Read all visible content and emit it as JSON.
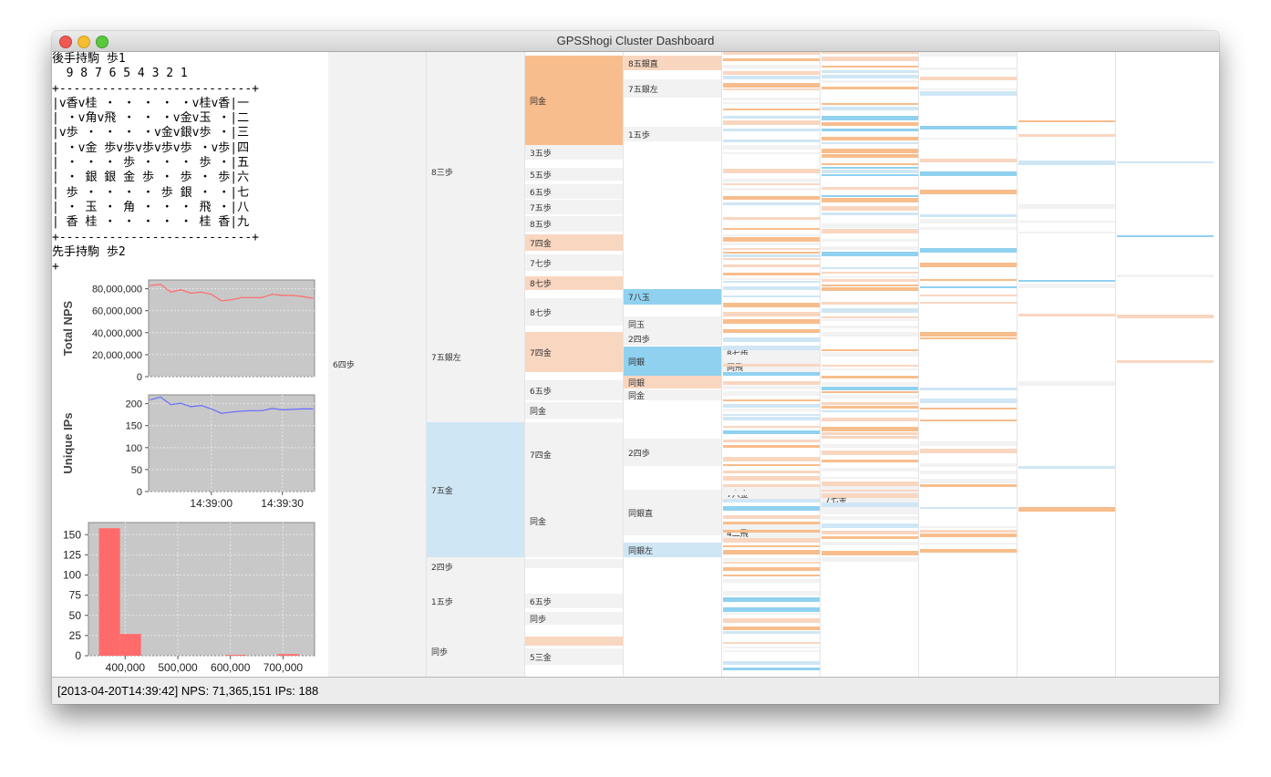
{
  "window": {
    "title": "GPSShogi Cluster Dashboard"
  },
  "board": {
    "lines": [
      "後手持駒 歩1",
      "  9 8 7 6 5 4 3 2 1",
      "+---------------------------+",
      "|v香v桂 ・ ・ ・ ・ ・v桂v香|一",
      "| ・v角v飛 ・ ・ ・v金v玉 ・|二",
      "|v歩 ・ ・ ・ ・v金v銀v歩 ・|三",
      "| ・v金 歩v歩v歩v歩v歩 ・v歩|四",
      "| ・ ・ ・ 歩 ・ ・ ・ 歩 ・|五",
      "| ・ 銀 銀 金 歩 ・ 歩 ・ 歩|六",
      "| 歩 ・ ・ ・ ・ 歩 銀 ・ ・|七",
      "| ・ 玉 ・ 角 ・ ・ ・ 飛 ・|八",
      "| 香 桂 ・ ・ ・ ・ ・ 桂 香|九",
      "+---------------------------+",
      "先手持駒 歩2",
      "+"
    ]
  },
  "nps_chart": {
    "ylabel": "Total NPS",
    "yticks": [
      "80,000,000",
      "60,000,000",
      "40,000,000",
      "20,000,000",
      "0"
    ],
    "tickvals": [
      80000000,
      60000000,
      40000000,
      20000000,
      0
    ],
    "color": "#ff6b6b",
    "bg": "#c8c8c8",
    "ylim": [
      0,
      88000000
    ]
  },
  "ips_chart": {
    "ylabel": "Unique IPs",
    "yticks": [
      "200",
      "150",
      "100",
      "50",
      "0"
    ],
    "tickvals": [
      200,
      150,
      100,
      50,
      0
    ],
    "xticks": [
      "14:39:00",
      "14:39:30"
    ],
    "color": "#6b6bff",
    "bg": "#c8c8c8",
    "ylim": [
      0,
      220
    ]
  },
  "histogram": {
    "yticks": [
      "150",
      "125",
      "100",
      "75",
      "50",
      "25",
      "0"
    ],
    "tickvals": [
      150,
      125,
      100,
      75,
      50,
      25,
      0
    ],
    "xticks": [
      "400,000",
      "500,000",
      "600,000",
      "700,000"
    ],
    "xtickvals": [
      400000,
      500000,
      600000,
      700000
    ],
    "color": "#ff6b6b",
    "bg": "#c8c8c8",
    "ylim": [
      0,
      165
    ],
    "xlim": [
      330000,
      760000
    ]
  },
  "chart_data": [
    {
      "type": "line",
      "x": [
        "14:38:38",
        "14:38:42",
        "14:38:46",
        "14:38:50",
        "14:38:54",
        "14:38:58",
        "14:39:02",
        "14:39:06",
        "14:39:10",
        "14:39:14",
        "14:39:18",
        "14:39:22",
        "14:39:26",
        "14:39:30",
        "14:39:34",
        "14:39:38",
        "14:39:42"
      ],
      "series": [
        {
          "values": [
            83000000,
            84000000,
            77000000,
            79000000,
            76000000,
            77000000,
            75000000,
            69000000,
            70000000,
            72000000,
            72000000,
            72000000,
            75000000,
            74000000,
            74000000,
            73000000,
            71365151
          ]
        }
      ],
      "ylabel": "Total NPS",
      "ylim": [
        0,
        88000000
      ]
    },
    {
      "type": "line",
      "x": [
        "14:38:38",
        "14:38:42",
        "14:38:46",
        "14:38:50",
        "14:38:54",
        "14:38:58",
        "14:39:02",
        "14:39:06",
        "14:39:10",
        "14:39:14",
        "14:39:18",
        "14:39:22",
        "14:39:26",
        "14:39:30",
        "14:39:34",
        "14:39:38",
        "14:39:42"
      ],
      "series": [
        {
          "values": [
            209,
            215,
            198,
            201,
            193,
            196,
            188,
            178,
            181,
            183,
            184,
            184,
            189,
            186,
            187,
            188,
            188
          ]
        }
      ],
      "xticks": [
        "14:39:00",
        "14:39:30"
      ],
      "ylabel": "Unique IPs",
      "ylim": [
        0,
        220
      ]
    },
    {
      "type": "bar",
      "bins": [
        [
          350000,
          390000
        ],
        [
          390000,
          430000
        ],
        [
          590000,
          630000
        ],
        [
          690000,
          730000
        ]
      ],
      "values": [
        158,
        27,
        1,
        2
      ],
      "ylim": [
        0,
        165
      ]
    }
  ],
  "tree": {
    "colors": {
      "orange": "#f8bd8c",
      "light_orange": "#f9d6c0",
      "blue": "#90d1f0",
      "light_blue": "#cfe6f4",
      "grey": "#f2f2f2"
    },
    "cells": [
      {
        "text": "6四歩",
        "c": "grey"
      },
      {
        "text": "8三歩",
        "c": "grey"
      },
      {
        "text": "7五銀左",
        "c": "grey"
      },
      {
        "text": "7五金",
        "c": "light_blue"
      },
      {
        "text": "2四歩",
        "c": "grey"
      },
      {
        "text": "1五歩",
        "c": "grey"
      },
      {
        "text": "同歩",
        "c": "grey"
      },
      {
        "text": "同金",
        "c": "orange"
      },
      {
        "text": "3五歩",
        "c": "grey"
      },
      {
        "text": "5五歩",
        "c": "grey"
      },
      {
        "text": "6五歩",
        "c": "grey"
      },
      {
        "text": "7五歩",
        "c": "grey"
      },
      {
        "text": "8五歩",
        "c": "grey"
      },
      {
        "text": "7四金",
        "c": "light_orange"
      },
      {
        "text": "7七歩",
        "c": "grey"
      },
      {
        "text": "8七歩",
        "c": "light_orange"
      },
      {
        "text": "8七歩",
        "c": "grey"
      },
      {
        "text": "7四金",
        "c": "light_orange"
      },
      {
        "text": "6五歩",
        "c": "grey"
      },
      {
        "text": "同金",
        "c": "grey"
      },
      {
        "text": "7四金",
        "c": "grey"
      },
      {
        "text": "同金",
        "c": "grey"
      },
      {
        "text": "",
        "c": "grey"
      },
      {
        "text": "6五歩",
        "c": "grey"
      },
      {
        "text": "同歩",
        "c": "grey"
      },
      {
        "text": "",
        "c": "light_orange"
      },
      {
        "text": "5三金",
        "c": "grey"
      },
      {
        "text": "8五銀直",
        "c": "light_orange"
      },
      {
        "text": "7五銀左",
        "c": "grey"
      },
      {
        "text": "1五歩",
        "c": "grey"
      },
      {
        "text": "7八玉",
        "c": "blue"
      },
      {
        "text": "同玉",
        "c": "grey"
      },
      {
        "text": "2四歩",
        "c": "grey"
      },
      {
        "text": "同銀",
        "c": "blue"
      },
      {
        "text": "同銀",
        "c": "light_orange"
      },
      {
        "text": "同金",
        "c": "grey"
      },
      {
        "text": "2四歩",
        "c": "grey"
      },
      {
        "text": "同銀直",
        "c": "grey"
      },
      {
        "text": "同銀左",
        "c": "light_blue"
      },
      {
        "text": "8七歩",
        "c": "grey"
      },
      {
        "text": "同飛",
        "c": "grey"
      },
      {
        "text": "7六金",
        "c": "grey"
      },
      {
        "text": "4二飛",
        "c": "grey"
      },
      {
        "text": "7七金",
        "c": "grey"
      }
    ]
  },
  "status": {
    "text": "[2013-04-20T14:39:42] NPS: 71,365,151  IPs: 188"
  }
}
